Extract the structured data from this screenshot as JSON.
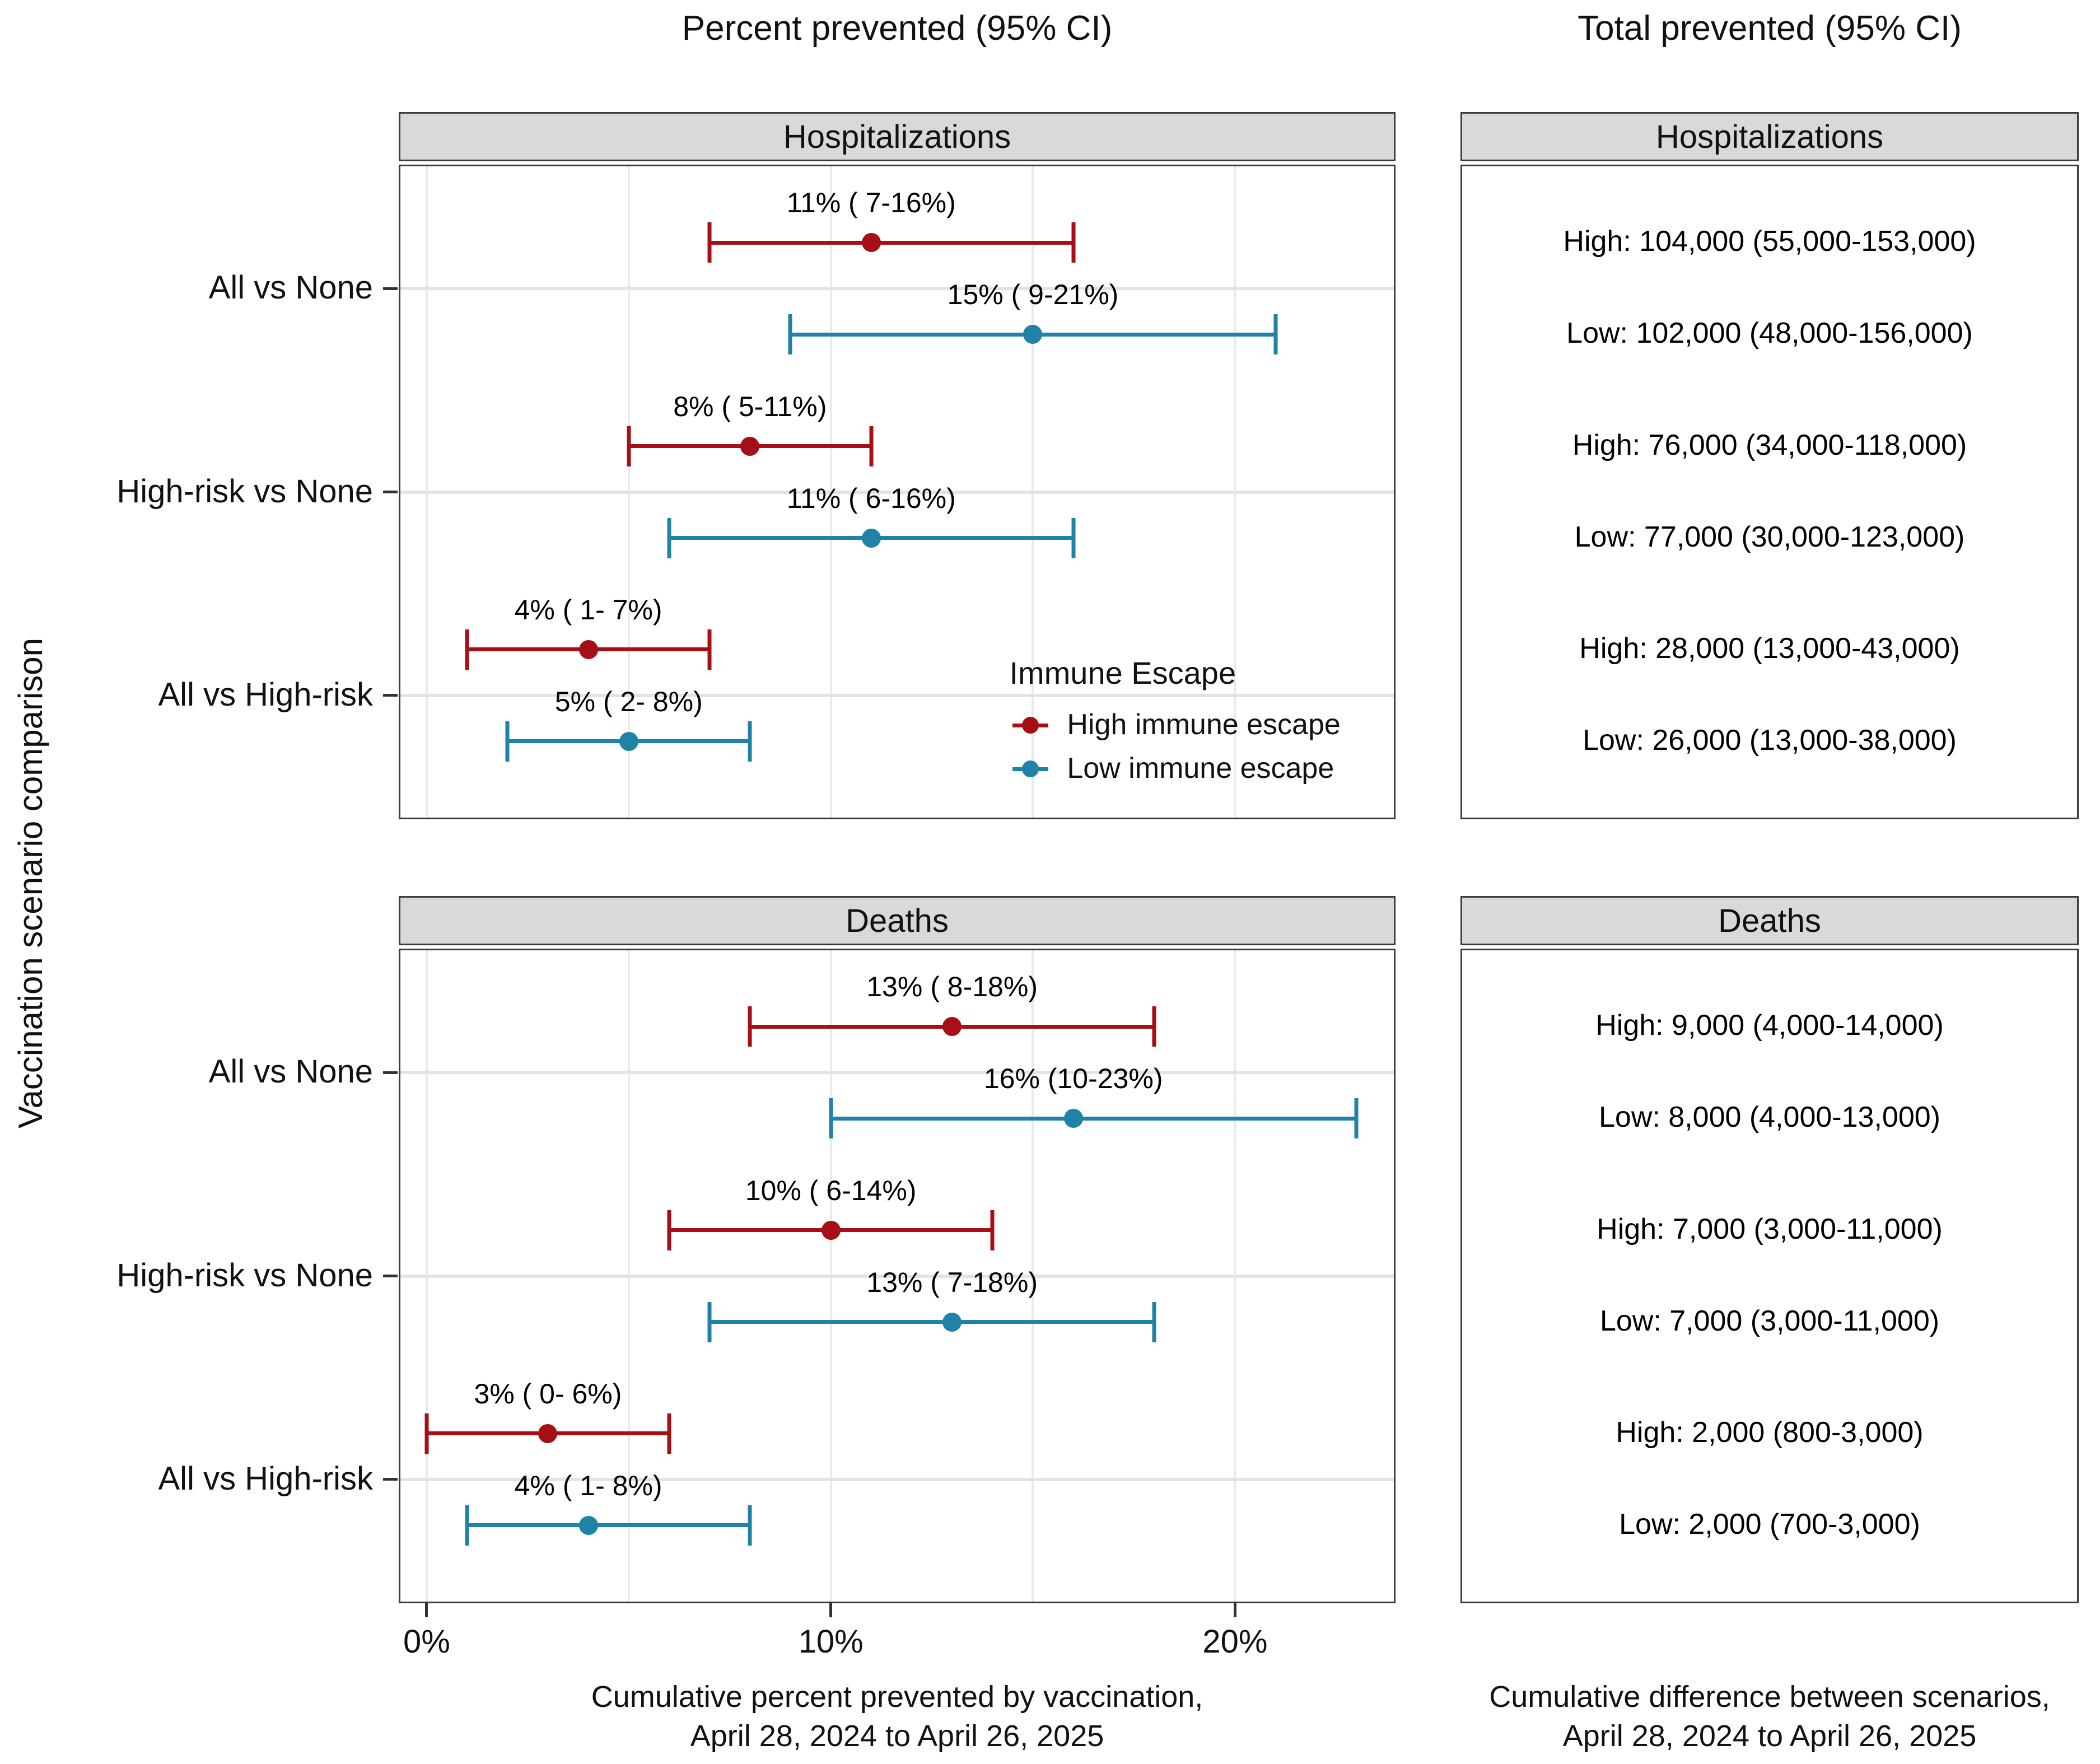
{
  "titles": {
    "left_column": "Percent prevented (95% CI)",
    "right_column": "Total prevented (95% CI)",
    "y_axis": "Vaccination scenario comparison",
    "caption_left_line1": "Cumulative percent prevented by vaccination,",
    "caption_left_line2": "April 28, 2024 to April 26, 2025",
    "caption_right_line1": "Cumulative difference between scenarios,",
    "caption_right_line2": "April 28, 2024 to April 26, 2025"
  },
  "facets": {
    "hospitalizations": "Hospitalizations",
    "deaths": "Deaths"
  },
  "colors": {
    "high": "#A50F15",
    "low": "#1F82A6",
    "strip_bg": "#D9D9D9",
    "panel_border": "#3C3C3C",
    "gridline": "#EAEAEA",
    "tick": "#333333"
  },
  "legend": {
    "title": "Immune Escape",
    "items": [
      {
        "label": "High immune escape",
        "color_key": "high"
      },
      {
        "label": "Low immune escape",
        "color_key": "low"
      }
    ]
  },
  "axis": {
    "min": -0.65,
    "max": 23.93,
    "ticks": [
      {
        "value": 0,
        "label": "0%"
      },
      {
        "value": 10,
        "label": "10%"
      },
      {
        "value": 20,
        "label": "20%"
      }
    ],
    "gridlines": [
      0,
      5,
      10,
      15,
      20
    ]
  },
  "categories": [
    "All vs None",
    "High-risk vs None",
    "All vs High-risk"
  ],
  "chart_data": [
    {
      "type": "scatter",
      "facet": "Hospitalizations",
      "panel": "percent_prevented",
      "categories": [
        "All vs None",
        "High-risk vs None",
        "All vs High-risk"
      ],
      "series": [
        {
          "name": "High immune escape",
          "values": [
            {
              "est": 11,
              "lo": 7,
              "hi": 16,
              "label": "11% ( 7-16%)"
            },
            {
              "est": 8,
              "lo": 5,
              "hi": 11,
              "label": "8% ( 5-11%)"
            },
            {
              "est": 4,
              "lo": 1,
              "hi": 7,
              "label": "4% ( 1- 7%)"
            }
          ]
        },
        {
          "name": "Low immune escape",
          "values": [
            {
              "est": 15,
              "lo": 9,
              "hi": 21,
              "label": "15% ( 9-21%)"
            },
            {
              "est": 11,
              "lo": 6,
              "hi": 16,
              "label": "11% ( 6-16%)"
            },
            {
              "est": 5,
              "lo": 2,
              "hi": 8,
              "label": "5% ( 2- 8%)"
            }
          ]
        }
      ]
    },
    {
      "type": "scatter",
      "facet": "Deaths",
      "panel": "percent_prevented",
      "categories": [
        "All vs None",
        "High-risk vs None",
        "All vs High-risk"
      ],
      "series": [
        {
          "name": "High immune escape",
          "values": [
            {
              "est": 13,
              "lo": 8,
              "hi": 18,
              "label": "13% ( 8-18%)"
            },
            {
              "est": 10,
              "lo": 6,
              "hi": 14,
              "label": "10% ( 6-14%)"
            },
            {
              "est": 3,
              "lo": 0,
              "hi": 6,
              "label": "3% ( 0- 6%)"
            }
          ]
        },
        {
          "name": "Low immune escape",
          "values": [
            {
              "est": 16,
              "lo": 10,
              "hi": 23,
              "label": "16% (10-23%)"
            },
            {
              "est": 13,
              "lo": 7,
              "hi": 18,
              "label": "13% ( 7-18%)"
            },
            {
              "est": 4,
              "lo": 1,
              "hi": 8,
              "label": "4% ( 1- 8%)"
            }
          ]
        }
      ]
    },
    {
      "type": "table",
      "facet": "Hospitalizations",
      "panel": "total_prevented",
      "rows": [
        {
          "group": "All vs None",
          "high": "High: 104,000 (55,000-153,000)",
          "low": "Low: 102,000 (48,000-156,000)"
        },
        {
          "group": "High-risk vs None",
          "high": "High: 76,000 (34,000-118,000)",
          "low": "Low: 77,000 (30,000-123,000)"
        },
        {
          "group": "All vs High-risk",
          "high": "High: 28,000 (13,000-43,000)",
          "low": "Low: 26,000 (13,000-38,000)"
        }
      ]
    },
    {
      "type": "table",
      "facet": "Deaths",
      "panel": "total_prevented",
      "rows": [
        {
          "group": "All vs None",
          "high": "High: 9,000 (4,000-14,000)",
          "low": "Low: 8,000 (4,000-13,000)"
        },
        {
          "group": "High-risk vs None",
          "high": "High: 7,000 (3,000-11,000)",
          "low": "Low: 7,000 (3,000-11,000)"
        },
        {
          "group": "All vs High-risk",
          "high": "High: 2,000 (800-3,000)",
          "low": "Low: 2,000 (700-3,000)"
        }
      ]
    }
  ]
}
